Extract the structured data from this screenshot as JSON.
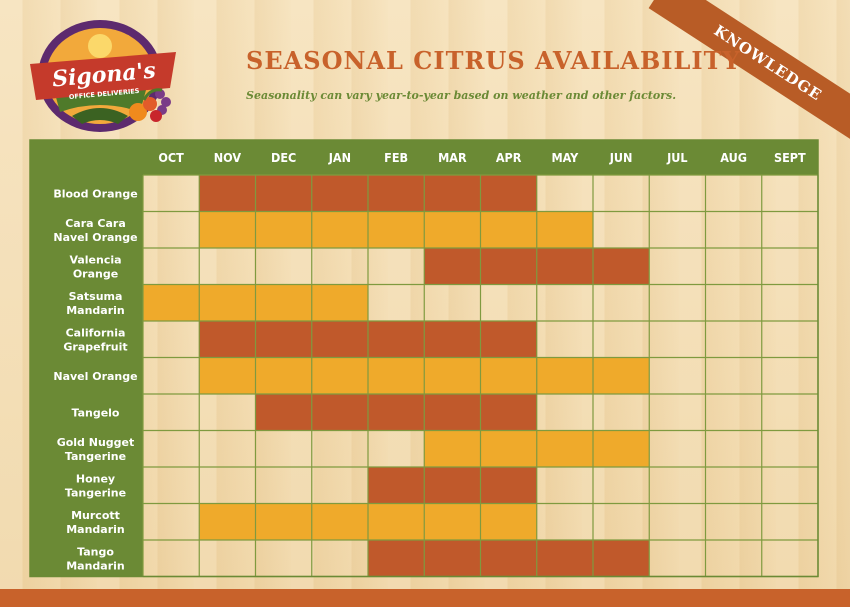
{
  "header": {
    "title": "SEASONAL CITRUS AVAILABILITY",
    "subtitle": "Seasonality can vary year-to-year based on weather and other factors.",
    "ribbon_label": "KNOWLEDGE"
  },
  "logo": {
    "brand": "Sigona's",
    "tagline": "OFFICE DELIVERIES"
  },
  "colors": {
    "header_green": "#6b8a35",
    "dark_orange": "#c0592b",
    "light_orange": "#efaa2b",
    "grid_line": "#7f9a3f",
    "accent": "#c8622b"
  },
  "chart_data": {
    "type": "table",
    "title": "SEASONAL CITRUS AVAILABILITY",
    "months": [
      "OCT",
      "NOV",
      "DEC",
      "JAN",
      "FEB",
      "MAR",
      "APR",
      "MAY",
      "JUN",
      "JUL",
      "AUG",
      "SEPT"
    ],
    "rows": [
      {
        "label": [
          "Blood Orange"
        ],
        "color": "dark",
        "available": [
          "NOV",
          "DEC",
          "JAN",
          "FEB",
          "MAR",
          "APR"
        ]
      },
      {
        "label": [
          "Cara Cara",
          "Navel Orange"
        ],
        "color": "light",
        "available": [
          "NOV",
          "DEC",
          "JAN",
          "FEB",
          "MAR",
          "APR",
          "MAY"
        ]
      },
      {
        "label": [
          "Valencia",
          "Orange"
        ],
        "color": "dark",
        "available": [
          "MAR",
          "APR",
          "MAY",
          "JUN"
        ]
      },
      {
        "label": [
          "Satsuma",
          "Mandarin"
        ],
        "color": "light",
        "available": [
          "OCT",
          "NOV",
          "DEC",
          "JAN"
        ]
      },
      {
        "label": [
          "California",
          "Grapefruit"
        ],
        "color": "dark",
        "available": [
          "NOV",
          "DEC",
          "JAN",
          "FEB",
          "MAR",
          "APR"
        ]
      },
      {
        "label": [
          "Navel Orange"
        ],
        "color": "light",
        "available": [
          "NOV",
          "DEC",
          "JAN",
          "FEB",
          "MAR",
          "APR",
          "MAY",
          "JUN"
        ]
      },
      {
        "label": [
          "Tangelo"
        ],
        "color": "dark",
        "available": [
          "DEC",
          "JAN",
          "FEB",
          "MAR",
          "APR"
        ]
      },
      {
        "label": [
          "Gold Nugget",
          "Tangerine"
        ],
        "color": "light",
        "available": [
          "MAR",
          "APR",
          "MAY",
          "JUN"
        ]
      },
      {
        "label": [
          "Honey",
          "Tangerine"
        ],
        "color": "dark",
        "available": [
          "FEB",
          "MAR",
          "APR"
        ]
      },
      {
        "label": [
          "Murcott",
          "Mandarin"
        ],
        "color": "light",
        "available": [
          "NOV",
          "DEC",
          "JAN",
          "FEB",
          "MAR",
          "APR"
        ]
      },
      {
        "label": [
          "Tango",
          "Mandarin"
        ],
        "color": "dark",
        "available": [
          "FEB",
          "MAR",
          "APR",
          "MAY",
          "JUN"
        ]
      }
    ]
  }
}
